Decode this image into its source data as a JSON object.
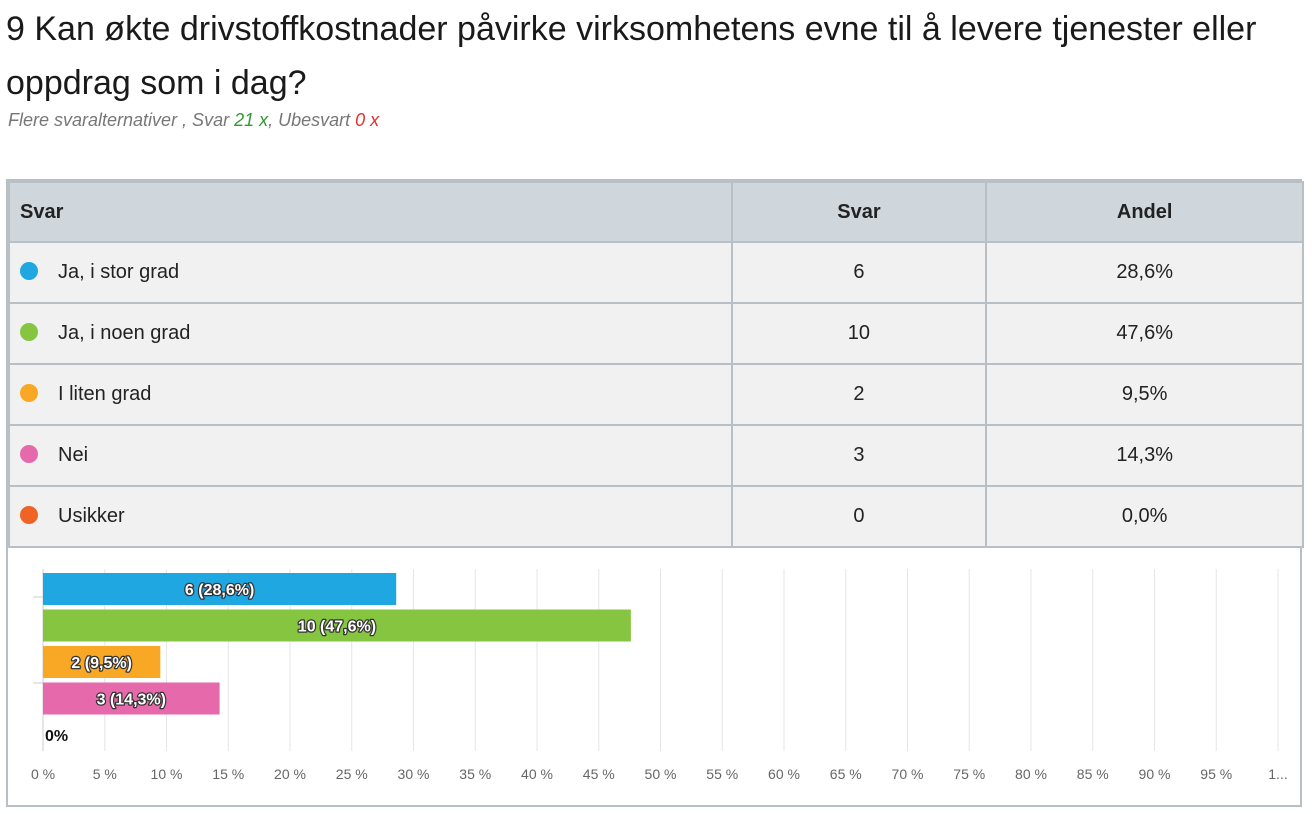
{
  "question": {
    "title": "9 Kan økte drivstoffkostnader påvirke virksomhetens evne til å levere tjenester eller oppdrag som i dag?",
    "meta_prefix": "Flere svaralternativer , Svar ",
    "answered": "21 x",
    "meta_mid": ", Ubesvart ",
    "unanswered": "0 x"
  },
  "table": {
    "headers": [
      "Svar",
      "Svar",
      "Andel"
    ],
    "rows": [
      {
        "label": "Ja, i stor grad",
        "count": "6",
        "share": "28,6%",
        "color": "#1ea7e1"
      },
      {
        "label": "Ja, i noen grad",
        "count": "10",
        "share": "47,6%",
        "color": "#86c540"
      },
      {
        "label": "I liten grad",
        "count": "2",
        "share": "9,5%",
        "color": "#f9a825"
      },
      {
        "label": "Nei",
        "count": "3",
        "share": "14,3%",
        "color": "#e66aab"
      },
      {
        "label": "Usikker",
        "count": "0",
        "share": "0,0%",
        "color": "#ef6426"
      }
    ]
  },
  "chart_data": {
    "type": "bar",
    "orientation": "horizontal",
    "categories": [
      "Ja, i stor grad",
      "Ja, i noen grad",
      "I liten grad",
      "Nei",
      "Usikker"
    ],
    "values": [
      28.6,
      47.6,
      9.5,
      14.3,
      0.0
    ],
    "counts": [
      6,
      10,
      2,
      3,
      0
    ],
    "data_labels": [
      "6 (28,6%)",
      "10 (47,6%)",
      "2 (9,5%)",
      "3 (14,3%)",
      "0%"
    ],
    "colors": [
      "#1ea7e1",
      "#86c540",
      "#f9a825",
      "#e66aab",
      "#ef6426"
    ],
    "xlim": [
      0,
      100
    ],
    "x_ticks": [
      "0 %",
      "5 %",
      "10 %",
      "15 %",
      "20 %",
      "25 %",
      "30 %",
      "35 %",
      "40 %",
      "45 %",
      "50 %",
      "55 %",
      "60 %",
      "65 %",
      "70 %",
      "75 %",
      "80 %",
      "85 %",
      "90 %",
      "95 %",
      "1..."
    ],
    "grid": true
  }
}
